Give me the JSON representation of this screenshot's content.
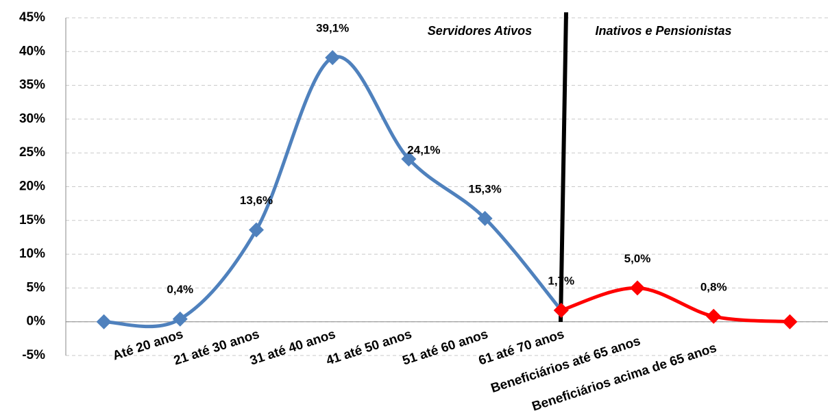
{
  "chart_data": {
    "type": "line",
    "categories": [
      null,
      "Até 20 anos",
      "21 até 30 anos",
      "31 até 40 anos",
      "41 até 50 anos",
      "51 até 60 anos",
      "61 até 70 anos",
      "Beneficiários até 65 anos",
      "Beneficiários acima de 65 anos",
      null
    ],
    "series": [
      {
        "name": "Servidores Ativos",
        "color": "#4f81bd",
        "values": [
          0,
          0.4,
          13.6,
          39.1,
          24.1,
          15.3,
          1.7,
          null,
          null,
          null
        ],
        "value_labels": [
          null,
          "0,4%",
          "13,6%",
          "39,1%",
          "24,1%",
          "15,3%",
          "1,7%",
          null,
          null,
          null
        ]
      },
      {
        "name": "Inativos e Pensionistas",
        "color": "#ff0000",
        "values": [
          null,
          null,
          null,
          null,
          null,
          null,
          1.7,
          5.0,
          0.8,
          0
        ],
        "value_labels": [
          null,
          null,
          null,
          null,
          null,
          null,
          null,
          "5,0%",
          "0,8%",
          null
        ]
      }
    ],
    "annotations": [
      "Servidores Ativos",
      "Inativos e Pensionistas"
    ],
    "ylim": [
      -5,
      45
    ],
    "yticks": [
      {
        "value": -5,
        "label": "-5%"
      },
      {
        "value": 0,
        "label": "0%"
      },
      {
        "value": 5,
        "label": "5%"
      },
      {
        "value": 10,
        "label": "10%"
      },
      {
        "value": 15,
        "label": "15%"
      },
      {
        "value": 20,
        "label": "20%"
      },
      {
        "value": 25,
        "label": "25%"
      },
      {
        "value": 30,
        "label": "30%"
      },
      {
        "value": 35,
        "label": "35%"
      },
      {
        "value": 40,
        "label": "40%"
      },
      {
        "value": 45,
        "label": "45%"
      }
    ],
    "grid": true,
    "smooth": true
  }
}
